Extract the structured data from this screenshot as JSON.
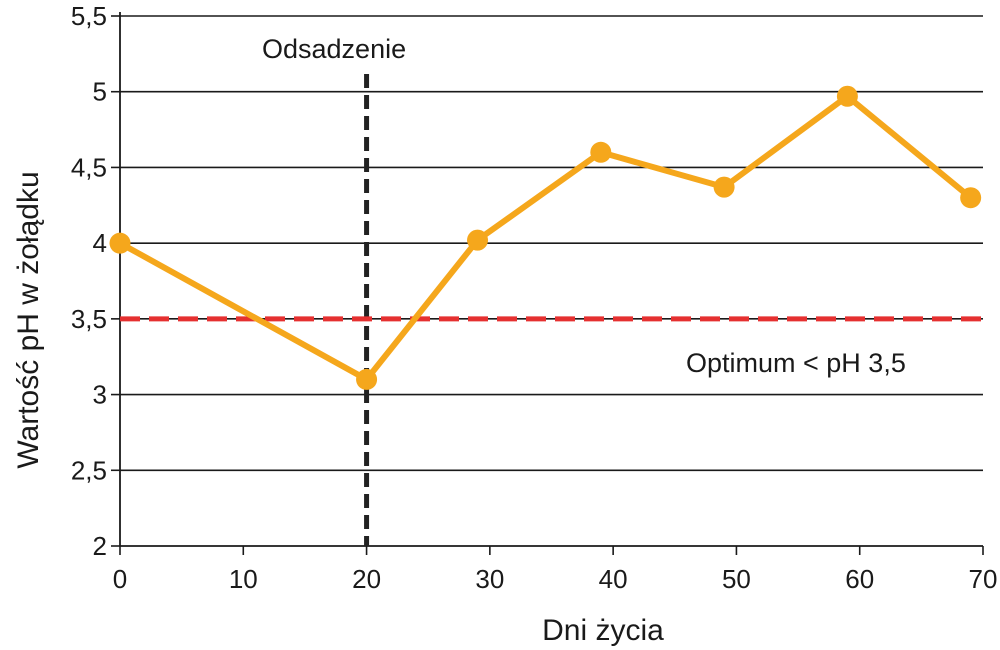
{
  "chart_data": {
    "type": "line",
    "title": "",
    "xlabel": "Dni życia",
    "ylabel": "Wartość pH w żołądku",
    "xlim": [
      0,
      70
    ],
    "ylim": [
      2,
      5.5
    ],
    "x_ticks": [
      0,
      10,
      20,
      30,
      40,
      50,
      60,
      70
    ],
    "x_tick_labels": [
      "0",
      "10",
      "20",
      "30",
      "40",
      "50",
      "60",
      "70"
    ],
    "y_ticks": [
      2,
      2.5,
      3,
      3.5,
      4,
      4.5,
      5,
      5.5
    ],
    "y_tick_labels": [
      "2",
      "2,5",
      "3",
      "3,5",
      "4",
      "4,5",
      "5",
      "5,5"
    ],
    "grid": "horizontal",
    "series": [
      {
        "name": "pH",
        "color": "#F5A71C",
        "x": [
          0,
          20,
          29,
          39,
          49,
          59,
          69
        ],
        "y": [
          4.0,
          3.1,
          4.02,
          4.6,
          4.37,
          4.97,
          4.3
        ]
      }
    ],
    "reference_lines": {
      "vertical": {
        "x": 20,
        "label": "Odsadzenie",
        "color": "#222222"
      },
      "horizontal": {
        "y": 3.5,
        "label": "Optimum < pH 3,5",
        "color": "#E53030"
      }
    }
  }
}
